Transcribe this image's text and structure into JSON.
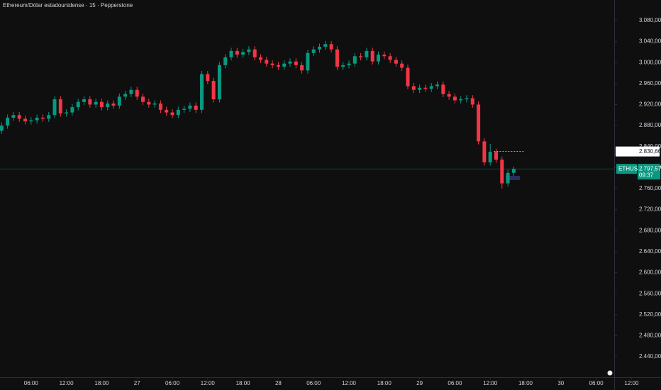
{
  "chart_data": {
    "type": "candlestick",
    "title": "Ethereum/Dólar estadounidense · 15 · Pepperstone",
    "up_color": "#089981",
    "down_color": "#f23645",
    "x": [
      1,
      2,
      3,
      4,
      5,
      6,
      7,
      8,
      9,
      10,
      11,
      12,
      13,
      14,
      15,
      16,
      17,
      18,
      19,
      20,
      21,
      22,
      23,
      24,
      25,
      26,
      27,
      28,
      29,
      30,
      31,
      32,
      33,
      34,
      35,
      36,
      37,
      38,
      39,
      40,
      41,
      42,
      43,
      44,
      45,
      46,
      47,
      48,
      49,
      50,
      51,
      52,
      53,
      54,
      55,
      56,
      57,
      58,
      59,
      60,
      61,
      62,
      63,
      64,
      65,
      66,
      67,
      68,
      69,
      70,
      71,
      72,
      73,
      74,
      75,
      76,
      77,
      78,
      79,
      80,
      81,
      82,
      83,
      84,
      85,
      86,
      87,
      88
    ],
    "open": [
      2870,
      2880,
      2895,
      2900,
      2893,
      2888,
      2890,
      2895,
      2893,
      2900,
      2930,
      2903,
      2905,
      2915,
      2925,
      2930,
      2920,
      2925,
      2915,
      2922,
      2918,
      2935,
      2940,
      2948,
      2935,
      2925,
      2920,
      2922,
      2910,
      2905,
      2900,
      2910,
      2912,
      2918,
      2910,
      2978,
      2965,
      2930,
      2995,
      3010,
      3022,
      3015,
      3020,
      3025,
      3010,
      3005,
      2998,
      2995,
      2992,
      2998,
      3002,
      2995,
      2985,
      3018,
      3025,
      3030,
      3035,
      3025,
      2992,
      2995,
      2998,
      3012,
      3010,
      3022,
      3002,
      3015,
      3012,
      3005,
      2998,
      2990,
      2955,
      2948,
      2952,
      2950,
      2955,
      2958,
      2940,
      2935,
      2928,
      2930,
      2932,
      2920,
      2850,
      2810,
      2830,
      2815,
      2770,
      2790
    ],
    "high": [
      2886,
      2901,
      2906,
      2906,
      2899,
      2896,
      2901,
      2901,
      2906,
      2936,
      2936,
      2911,
      2921,
      2931,
      2936,
      2936,
      2931,
      2931,
      2928,
      2928,
      2941,
      2946,
      2954,
      2954,
      2941,
      2931,
      2928,
      2928,
      2916,
      2911,
      2916,
      2918,
      2924,
      2924,
      2984,
      2984,
      2971,
      3001,
      3016,
      3028,
      3028,
      3026,
      3031,
      3031,
      3016,
      3011,
      3004,
      3001,
      3004,
      3008,
      3008,
      3001,
      3024,
      3031,
      3036,
      3041,
      3041,
      3031,
      3001,
      3004,
      3018,
      3018,
      3028,
      3028,
      3021,
      3021,
      3018,
      3011,
      3004,
      2996,
      2961,
      2958,
      2958,
      2961,
      2964,
      2964,
      2946,
      2941,
      2936,
      2938,
      2938,
      2926,
      2856,
      2845,
      2836,
      2821,
      2796,
      2802
    ],
    "low": [
      2864,
      2874,
      2889,
      2887,
      2882,
      2882,
      2884,
      2887,
      2887,
      2894,
      2897,
      2897,
      2899,
      2909,
      2919,
      2914,
      2914,
      2909,
      2909,
      2912,
      2912,
      2929,
      2934,
      2929,
      2919,
      2914,
      2914,
      2904,
      2899,
      2894,
      2894,
      2904,
      2906,
      2904,
      2904,
      2959,
      2924,
      2924,
      2989,
      3004,
      3009,
      3009,
      3014,
      3004,
      2999,
      2992,
      2989,
      2986,
      2986,
      2992,
      2989,
      2979,
      2979,
      3012,
      3019,
      3024,
      3019,
      2986,
      2986,
      2989,
      2992,
      3004,
      3004,
      2996,
      2996,
      3006,
      2999,
      2992,
      2984,
      2949,
      2942,
      2942,
      2944,
      2944,
      2949,
      2934,
      2929,
      2922,
      2922,
      2924,
      2914,
      2844,
      2804,
      2804,
      2809,
      2760,
      2764,
      2784
    ],
    "close": [
      2880,
      2895,
      2900,
      2893,
      2888,
      2890,
      2895,
      2893,
      2900,
      2930,
      2903,
      2905,
      2915,
      2925,
      2930,
      2920,
      2925,
      2915,
      2922,
      2918,
      2935,
      2940,
      2948,
      2935,
      2925,
      2920,
      2922,
      2910,
      2905,
      2900,
      2910,
      2912,
      2918,
      2910,
      2978,
      2965,
      2930,
      2995,
      3010,
      3022,
      3015,
      3020,
      3025,
      3010,
      3005,
      2998,
      2995,
      2992,
      2998,
      3002,
      2995,
      2985,
      3018,
      3025,
      3030,
      3035,
      3025,
      2992,
      2995,
      2998,
      3012,
      3010,
      3022,
      3002,
      3015,
      3012,
      3005,
      2998,
      2990,
      2955,
      2948,
      2952,
      2950,
      2955,
      2958,
      2940,
      2935,
      2928,
      2930,
      2932,
      2920,
      2850,
      2810,
      2830,
      2815,
      2770,
      2790,
      2797.57
    ],
    "xlim": [
      0.72,
      105.06
    ],
    "xticks": [
      {
        "value": 6,
        "label": "06:00"
      },
      {
        "value": 12,
        "label": "12:00"
      },
      {
        "value": 18,
        "label": "18:00"
      },
      {
        "value": 24,
        "label": "27"
      },
      {
        "value": 30,
        "label": "06:00"
      },
      {
        "value": 36,
        "label": "12:00"
      },
      {
        "value": 42,
        "label": "18:00"
      },
      {
        "value": 48,
        "label": "28"
      },
      {
        "value": 54,
        "label": "06:00"
      },
      {
        "value": 60,
        "label": "12:00"
      },
      {
        "value": 66,
        "label": "18:00"
      },
      {
        "value": 72,
        "label": "29"
      },
      {
        "value": 78,
        "label": "06:00"
      },
      {
        "value": 84,
        "label": "12:00"
      },
      {
        "value": 90,
        "label": "18:00"
      },
      {
        "value": 96,
        "label": "30"
      },
      {
        "value": 102,
        "label": "06:00"
      },
      {
        "value": 108,
        "label": "12:00"
      }
    ],
    "ylim": [
      2401,
      3119
    ],
    "yticks": [
      {
        "value": 2440,
        "label": "2.440,00"
      },
      {
        "value": 2480,
        "label": "2.480,00"
      },
      {
        "value": 2520,
        "label": "2.520,00"
      },
      {
        "value": 2560,
        "label": "2.560,00"
      },
      {
        "value": 2600,
        "label": "2.600,00"
      },
      {
        "value": 2640,
        "label": "2.640,00"
      },
      {
        "value": 2680,
        "label": "2.680,00"
      },
      {
        "value": 2720,
        "label": "2.720,00"
      },
      {
        "value": 2760,
        "label": "2.760,00"
      },
      {
        "value": 2800,
        "label": "2.800,00"
      },
      {
        "value": 2840,
        "label": "2.840,00"
      },
      {
        "value": 2880,
        "label": "2.880,00"
      },
      {
        "value": 2920,
        "label": "2.920,00"
      },
      {
        "value": 2960,
        "label": "2.960,00"
      },
      {
        "value": 3000,
        "label": "3.000,00"
      },
      {
        "value": 3040,
        "label": "3.040,00"
      },
      {
        "value": 3080,
        "label": "3.080,00"
      }
    ],
    "marker_line": {
      "value": 2830.66,
      "label": "2.830,66"
    },
    "last_price": {
      "value": 2797.57,
      "label": "2.797,57",
      "symbol": "ETHUSD",
      "countdown": "09:37",
      "color": "#089981"
    }
  }
}
